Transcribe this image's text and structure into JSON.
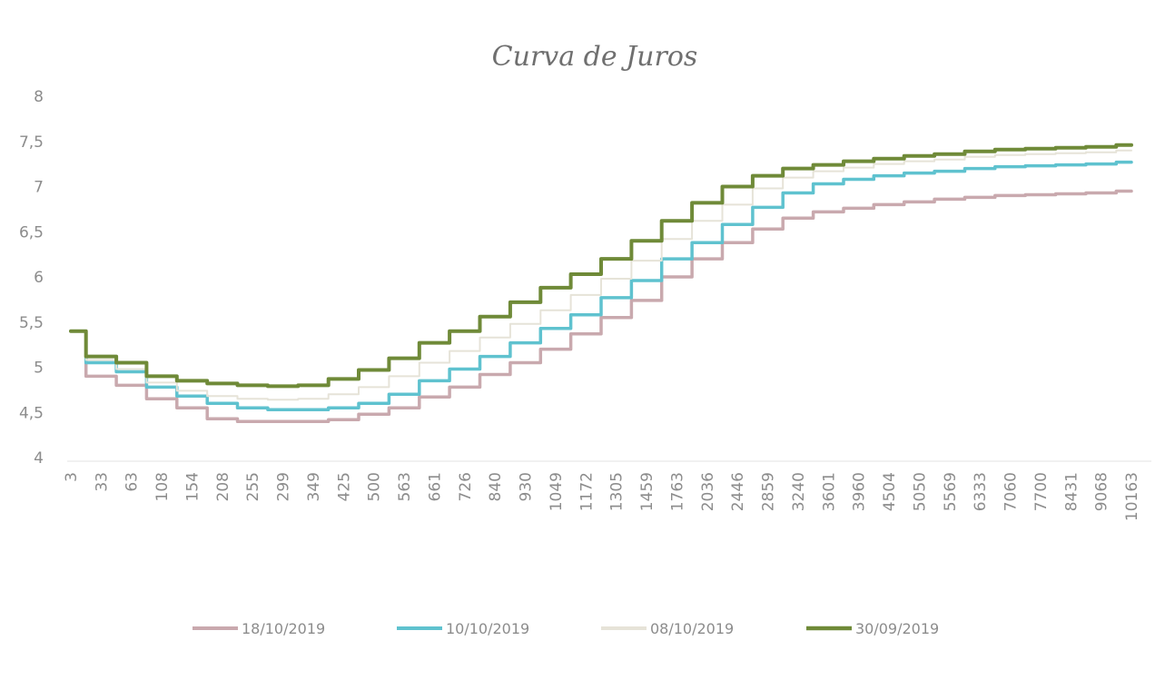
{
  "chart_data": {
    "type": "line",
    "title": "Curva de Juros",
    "xlabel": "",
    "ylabel": "",
    "ylim": [
      4,
      8
    ],
    "yticks": [
      "8",
      "7,5",
      "7",
      "6,5",
      "6",
      "5,5",
      "5",
      "4,5",
      "4"
    ],
    "ytick_values": [
      8,
      7.5,
      7,
      6.5,
      6,
      5.5,
      5,
      4.5,
      4
    ],
    "grid": false,
    "legend_position": "bottom",
    "x": [
      "3",
      "33",
      "63",
      "108",
      "154",
      "208",
      "255",
      "299",
      "349",
      "425",
      "500",
      "563",
      "661",
      "726",
      "840",
      "930",
      "1049",
      "1172",
      "1305",
      "1459",
      "1763",
      "2036",
      "2446",
      "2859",
      "3240",
      "3601",
      "3960",
      "4504",
      "5050",
      "5569",
      "6333",
      "7060",
      "7700",
      "8431",
      "9068",
      "10163"
    ],
    "series": [
      {
        "name": "18/10/2019",
        "color": "#c9a9ae",
        "values": [
          5.4,
          4.9,
          4.8,
          4.65,
          4.55,
          4.43,
          4.4,
          4.4,
          4.4,
          4.42,
          4.48,
          4.55,
          4.67,
          4.78,
          4.92,
          5.05,
          5.2,
          5.37,
          5.55,
          5.74,
          6.0,
          6.2,
          6.38,
          6.53,
          6.65,
          6.72,
          6.76,
          6.8,
          6.83,
          6.86,
          6.88,
          6.9,
          6.91,
          6.92,
          6.93,
          6.95
        ]
      },
      {
        "name": "10/10/2019",
        "color": "#5fc2cf",
        "values": [
          5.4,
          5.05,
          4.95,
          4.78,
          4.68,
          4.6,
          4.55,
          4.53,
          4.53,
          4.55,
          4.6,
          4.7,
          4.85,
          4.98,
          5.12,
          5.27,
          5.43,
          5.58,
          5.77,
          5.96,
          6.2,
          6.38,
          6.58,
          6.77,
          6.93,
          7.03,
          7.08,
          7.12,
          7.15,
          7.17,
          7.2,
          7.22,
          7.23,
          7.24,
          7.25,
          7.27
        ]
      },
      {
        "name": "08/10/2019",
        "color": "#e6e3d8",
        "values": [
          5.4,
          5.08,
          4.98,
          4.83,
          4.74,
          4.68,
          4.65,
          4.64,
          4.65,
          4.7,
          4.78,
          4.9,
          5.05,
          5.18,
          5.33,
          5.48,
          5.63,
          5.8,
          5.98,
          6.18,
          6.42,
          6.62,
          6.8,
          6.98,
          7.1,
          7.17,
          7.21,
          7.25,
          7.28,
          7.3,
          7.33,
          7.35,
          7.36,
          7.37,
          7.38,
          7.4
        ]
      },
      {
        "name": "30/09/2019",
        "color": "#6f8a38",
        "values": [
          5.4,
          5.12,
          5.05,
          4.9,
          4.85,
          4.82,
          4.8,
          4.79,
          4.8,
          4.87,
          4.97,
          5.1,
          5.27,
          5.4,
          5.56,
          5.72,
          5.88,
          6.03,
          6.2,
          6.4,
          6.62,
          6.82,
          7.0,
          7.12,
          7.2,
          7.24,
          7.28,
          7.31,
          7.34,
          7.36,
          7.39,
          7.41,
          7.42,
          7.43,
          7.44,
          7.46
        ]
      }
    ]
  }
}
